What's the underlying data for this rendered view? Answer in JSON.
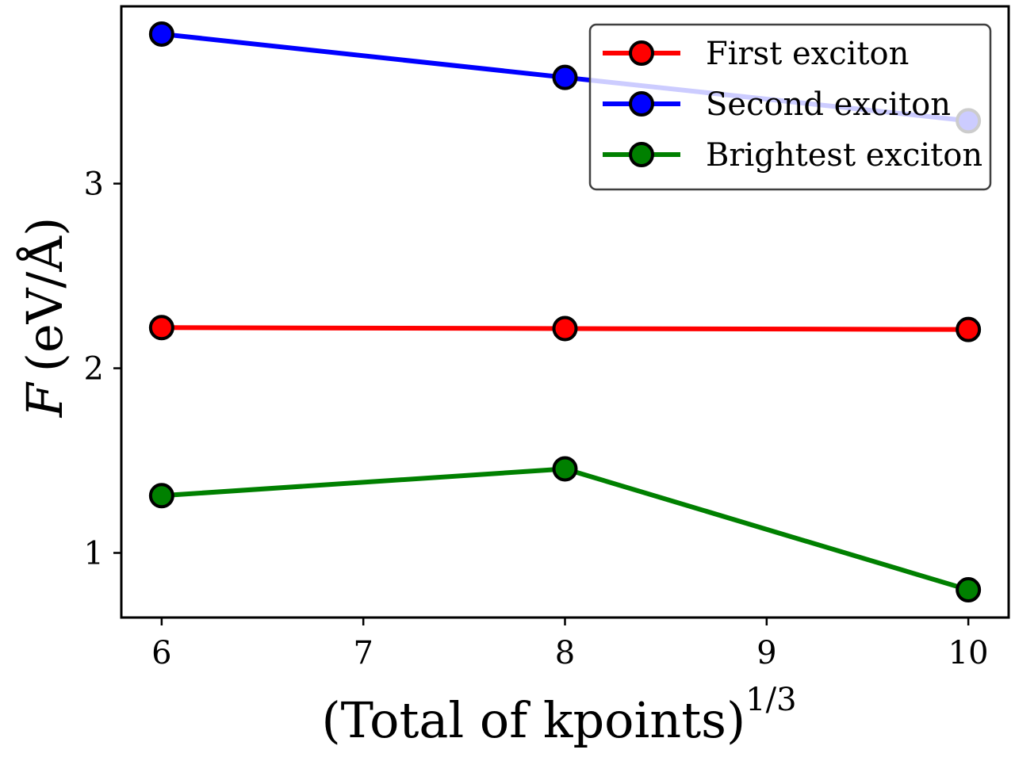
{
  "chart_data": {
    "type": "line",
    "title": "",
    "xlabel": "(Total of kpoints)",
    "xlabel_superscript": "1/3",
    "ylabel_symbol": "F",
    "ylabel_unit": "(eV/Å)",
    "x": [
      6,
      8,
      10
    ],
    "xlim": [
      5.8,
      10.2
    ],
    "ylim": [
      0.65,
      3.96
    ],
    "xticks": [
      6,
      7,
      8,
      9,
      10
    ],
    "yticks": [
      1,
      2,
      3
    ],
    "grid": false,
    "legend_position": "top-right",
    "series": [
      {
        "name": "First exciton",
        "color": "#ff0000",
        "values": [
          2.22,
          2.215,
          2.21
        ]
      },
      {
        "name": "Second exciton",
        "color": "#0000ff",
        "values": [
          3.81,
          3.575,
          3.34
        ]
      },
      {
        "name": "Brightest exciton",
        "color": "#008000",
        "values": [
          1.31,
          1.455,
          0.8
        ]
      }
    ]
  }
}
